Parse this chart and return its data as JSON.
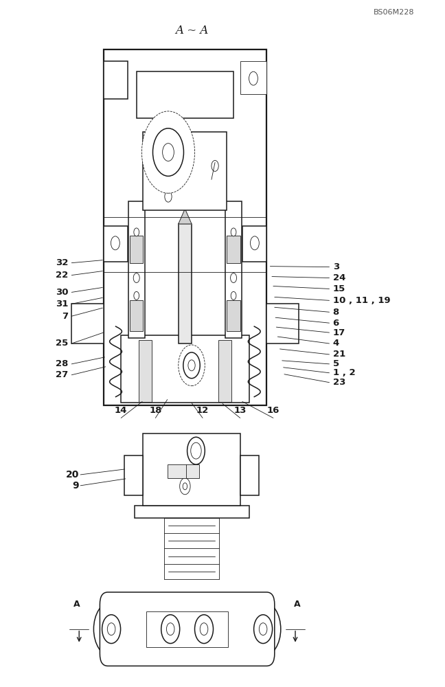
{
  "bg_color": "#ffffff",
  "line_color": "#1a1a1a",
  "fig_width": 6.48,
  "fig_height": 10.0,
  "dpi": 100,
  "bottom_label": "A ~ A",
  "watermark": "BS06M228"
}
